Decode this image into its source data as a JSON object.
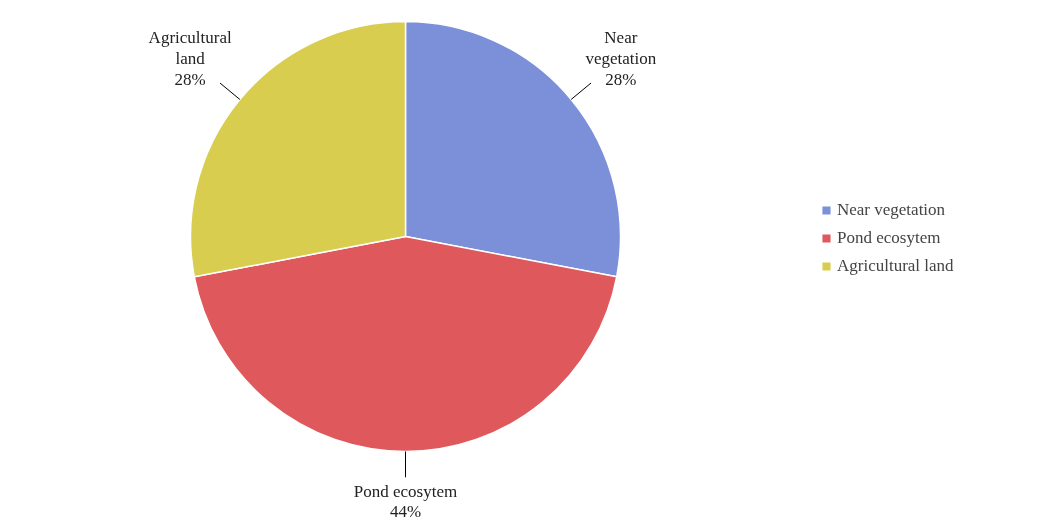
{
  "chart_data": {
    "type": "pie",
    "categories": [
      "Near vegetation",
      "Pond ecosytem",
      "Agricultural land"
    ],
    "values": [
      28,
      44,
      28
    ],
    "colors": [
      "#7b90d8",
      "#de585c",
      "#d8cd4e"
    ],
    "value_labels": [
      "28%",
      "44%",
      "28%"
    ],
    "legend": "right"
  }
}
